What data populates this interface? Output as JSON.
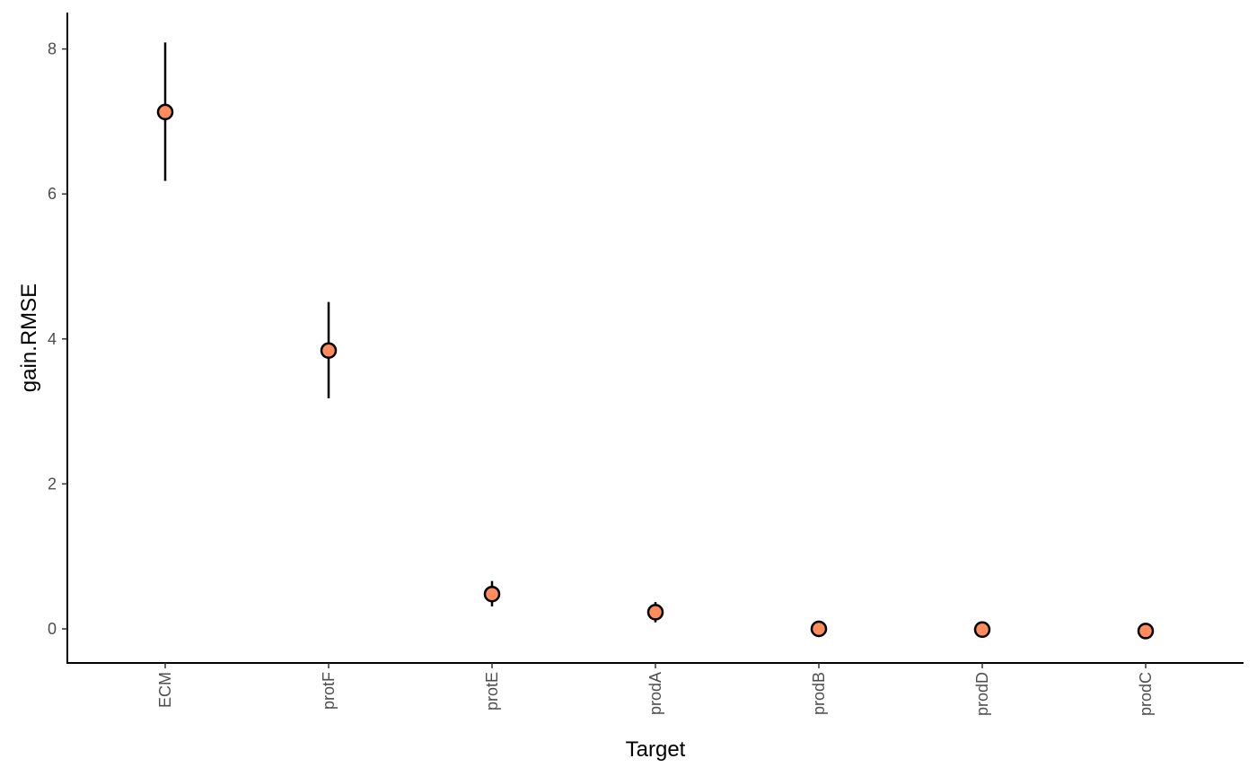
{
  "chart_data": {
    "type": "scatter",
    "xlabel": "Target",
    "ylabel": "gain.RMSE",
    "categories": [
      "ECM",
      "protF",
      "protE",
      "prodA",
      "prodB",
      "prodD",
      "prodC"
    ],
    "values": [
      7.13,
      3.84,
      0.48,
      0.23,
      0.0,
      -0.01,
      -0.03
    ],
    "error_low": [
      6.18,
      3.18,
      0.31,
      0.09,
      -0.02,
      -0.03,
      -0.06
    ],
    "error_high": [
      8.09,
      4.51,
      0.66,
      0.37,
      0.02,
      0.01,
      0.0
    ],
    "ylim": [
      -0.45,
      8.5
    ],
    "yticks": [
      0,
      2,
      4,
      6,
      8
    ],
    "ytick_labels": [
      "0",
      "2",
      "4",
      "6",
      "8"
    ],
    "grid": false,
    "legend": "none",
    "colors": {
      "point_fill": "#ff8c5a",
      "point_stroke": "#000000",
      "error_bar": "#000000",
      "axis": "#000000"
    }
  }
}
